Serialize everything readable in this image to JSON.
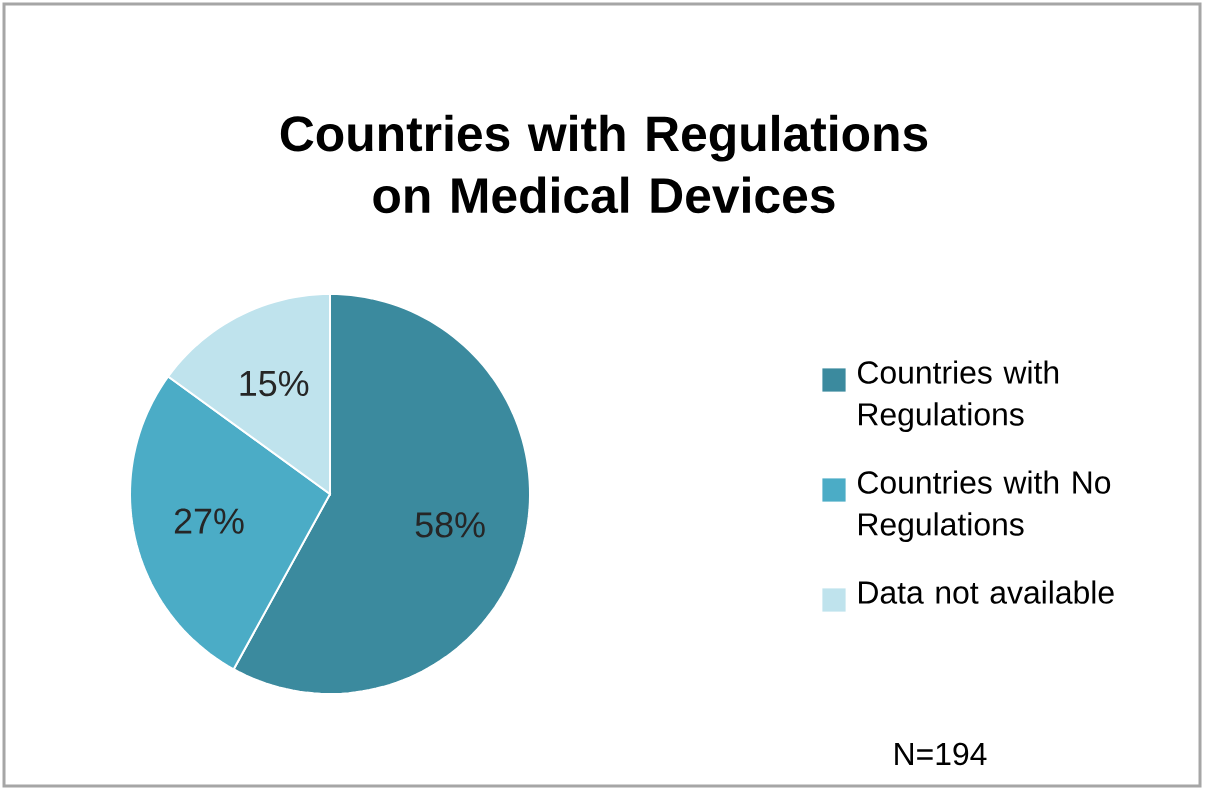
{
  "chart_data": {
    "type": "pie",
    "title": "Countries with Regulations on Medical Devices",
    "categories": [
      "Countries with Regulations",
      "Countries with No Regulations",
      "Data not available"
    ],
    "values": [
      58,
      27,
      15
    ],
    "value_labels": [
      "58%",
      "27%",
      "15%"
    ],
    "colors": [
      "#3b8a9e",
      "#4bacc6",
      "#bfe3ed"
    ],
    "legend": "right",
    "annotations": [
      "N=194"
    ]
  }
}
